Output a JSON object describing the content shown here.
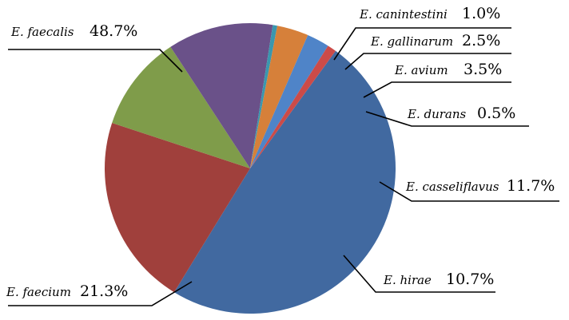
{
  "chart_data": {
    "type": "pie",
    "title": "",
    "slices": [
      {
        "name": "E. faecalis",
        "value_label": "48.7%",
        "value": 48.7,
        "color": "#4169A0"
      },
      {
        "name": "E. faecium",
        "value_label": "21.3%",
        "value": 21.3,
        "color": "#A0403C"
      },
      {
        "name": "E. hirae",
        "value_label": "10.7%",
        "value": 10.7,
        "color": "#7F9C4A"
      },
      {
        "name": "E. casseliflavus",
        "value_label": "11.7%",
        "value": 11.7,
        "color": "#6A5189"
      },
      {
        "name": "E. durans",
        "value_label": "0.5%",
        "value": 0.5,
        "color": "#3A97AE"
      },
      {
        "name": "E. avium",
        "value_label": "3.5%",
        "value": 3.5,
        "color": "#D6803A"
      },
      {
        "name": "E. gallinarum",
        "value_label": "2.5%",
        "value": 2.5,
        "color": "#4F84C8"
      },
      {
        "name": "E. canintestini",
        "value_label": "1.0%",
        "value": 1.0,
        "color": "#CC4B48"
      }
    ],
    "legend": "none",
    "labels": "outside with leader lines"
  }
}
